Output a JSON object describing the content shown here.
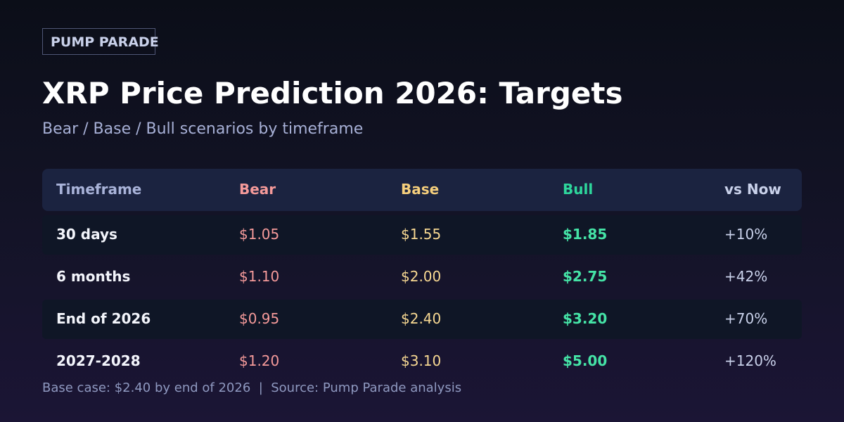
{
  "brand": "PUMP PARADE",
  "title": "XRP Price Prediction 2026: Targets",
  "subtitle": "Bear / Base / Bull scenarios by timeframe",
  "table": {
    "header": [
      "Timeframe",
      "Bear",
      "Base",
      "Bull",
      "vs Now"
    ],
    "rows": [
      [
        "30 days",
        "$1.05",
        "$1.55",
        "$1.85",
        "+10%"
      ],
      [
        "6 months",
        "$1.10",
        "$2.00",
        "$2.75",
        "+42%"
      ],
      [
        "End of 2026",
        "$0.95",
        "$2.40",
        "$3.20",
        "+70%"
      ],
      [
        "2027-2028",
        "$1.20",
        "$3.10",
        "$5.00",
        "+120%"
      ]
    ]
  },
  "footer": "Base case: $2.40 by end of 2026  |  Source: Pump Parade analysis"
}
